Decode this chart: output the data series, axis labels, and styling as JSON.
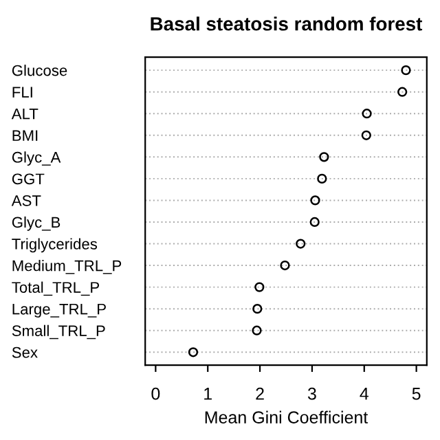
{
  "chart_data": {
    "type": "scatter",
    "title": "Basal steatosis random forest",
    "xlabel": "Mean Gini Coefficient",
    "categories": [
      "Glucose",
      "FLI",
      "ALT",
      "BMI",
      "Glyc_A",
      "GGT",
      "AST",
      "Glyc_B",
      "Triglycerides",
      "Medium_TRL_P",
      "Total_TRL_P",
      "Large_TRL_P",
      "Small_TRL_P",
      "Sex"
    ],
    "orientation": "horizontal",
    "series": [
      {
        "color": "#000000",
        "values": [
          4.8,
          4.73,
          4.05,
          4.04,
          3.23,
          3.19,
          3.06,
          3.05,
          2.78,
          2.48,
          1.99,
          1.95,
          1.94,
          0.72
        ]
      }
    ],
    "xlim": [
      -0.2,
      5.2
    ],
    "xticks": [
      0,
      1,
      2,
      3,
      4,
      5
    ],
    "grid": "y",
    "marker": "circle",
    "legend": false
  }
}
